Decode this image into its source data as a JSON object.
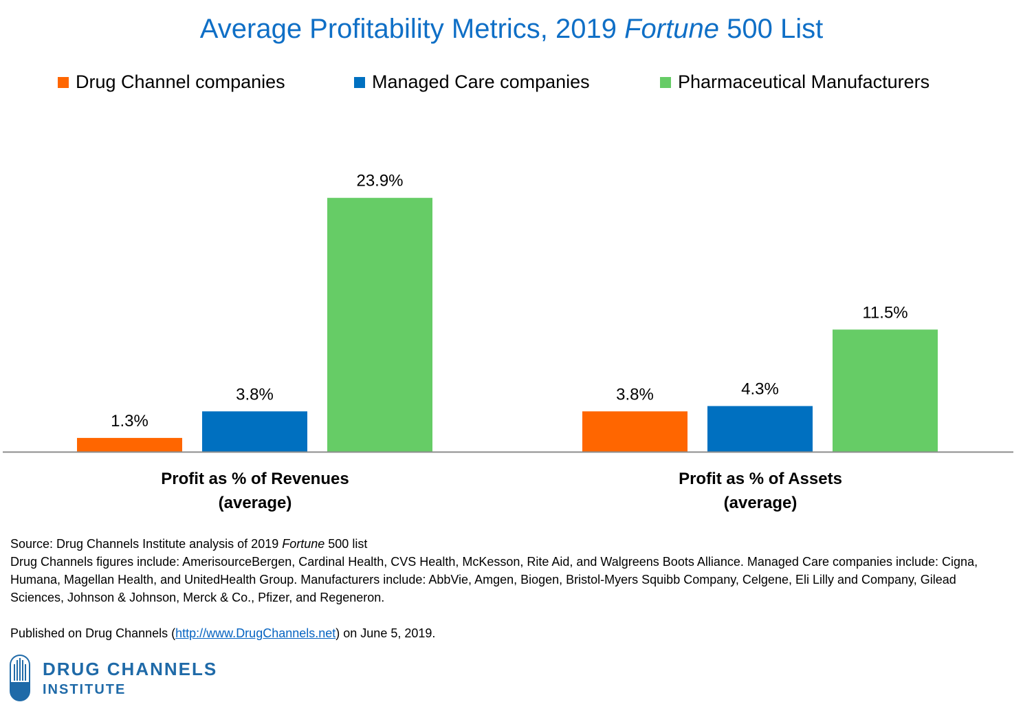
{
  "title_main": "Average Profitability Metrics, 2019 ",
  "title_italic": "Fortune",
  "title_end": " 500 List",
  "colors": {
    "title": "#0f6fc6",
    "drug": "#ff6600",
    "care": "#0070c0",
    "pharma": "#66cc66",
    "link": "#0563c1",
    "logo": "#1f6aa8"
  },
  "chart_data": {
    "type": "bar",
    "title": "Average Profitability Metrics, 2019 Fortune 500 List",
    "categories": [
      {
        "line1": "Profit as % of Revenues",
        "line2": "(average)"
      },
      {
        "line1": "Profit as % of Assets",
        "line2": "(average)"
      }
    ],
    "series": [
      {
        "name": "Drug Channel companies",
        "color": "#ff6600",
        "values": [
          1.3,
          3.8
        ],
        "labels": [
          "1.3%",
          "3.8%"
        ]
      },
      {
        "name": "Managed Care companies",
        "color": "#0070c0",
        "values": [
          3.8,
          4.3
        ],
        "labels": [
          "3.8%",
          "4.3%"
        ]
      },
      {
        "name": "Pharmaceutical Manufacturers",
        "color": "#66cc66",
        "values": [
          23.9,
          11.5
        ],
        "labels": [
          "23.9%",
          "11.5%"
        ]
      }
    ],
    "ylim": [
      0,
      28
    ],
    "grid": false,
    "legend_position": "top"
  },
  "notes": {
    "source_prefix": "Source: Drug Channels Institute analysis of 2019 ",
    "source_italic": "Fortune",
    "source_suffix": " 500 list",
    "details": "Drug Channels figures include: AmerisourceBergen, Cardinal Health, CVS Health, McKesson, Rite Aid, and Walgreens Boots Alliance. Managed Care companies include: Cigna, Humana, Magellan Health, and UnitedHealth Group. Manufacturers include: AbbVie, Amgen, Biogen, Bristol-Myers Squibb Company, Celgene, Eli Lilly and Company, Gilead Sciences, Johnson & Johnson, Merck & Co., Pfizer, and Regeneron.",
    "published_prefix": "Published on Drug Channels (",
    "published_link": "http://www.DrugChannels.net",
    "published_suffix": ") on June 5, 2019."
  },
  "logo": {
    "line1": "DRUG CHANNELS",
    "line2": "INSTITUTE",
    "icon": "capsule-logo-icon"
  }
}
